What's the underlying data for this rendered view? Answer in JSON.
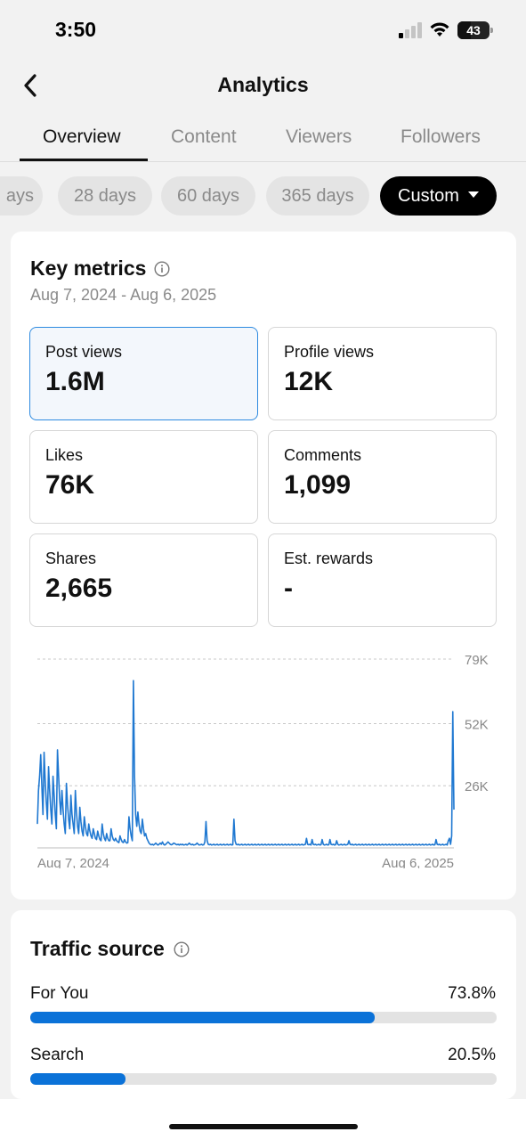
{
  "status_bar": {
    "time": "3:50",
    "battery": "43",
    "battery_level": 0.43
  },
  "nav": {
    "title": "Analytics"
  },
  "tabs": [
    {
      "label": "Overview",
      "active": true
    },
    {
      "label": "Content",
      "active": false
    },
    {
      "label": "Viewers",
      "active": false
    },
    {
      "label": "Followers",
      "active": false
    }
  ],
  "chips": [
    {
      "label": "ays",
      "selected": false
    },
    {
      "label": "28 days",
      "selected": false
    },
    {
      "label": "60 days",
      "selected": false
    },
    {
      "label": "365 days",
      "selected": false
    },
    {
      "label": "Custom",
      "selected": true
    }
  ],
  "key_metrics": {
    "title": "Key metrics",
    "date_range": "Aug 7, 2024 - Aug 6, 2025",
    "metrics": [
      {
        "label": "Post views",
        "value": "1.6M",
        "active": true
      },
      {
        "label": "Profile views",
        "value": "12K",
        "active": false
      },
      {
        "label": "Likes",
        "value": "76K",
        "active": false
      },
      {
        "label": "Comments",
        "value": "1,099",
        "active": false
      },
      {
        "label": "Shares",
        "value": "2,665",
        "active": false
      },
      {
        "label": "Est. rewards",
        "value": "-",
        "active": false
      }
    ]
  },
  "chart_data": {
    "type": "line",
    "x_start": "Aug 7, 2024",
    "x_end": "Aug 6, 2025",
    "y_ticks": [
      "79K",
      "52K",
      "26K"
    ],
    "y_tick_values": [
      79000,
      52000,
      26000
    ],
    "ylim": [
      0,
      79000
    ],
    "grid": true,
    "line_color": "#1f78d1",
    "series": [
      {
        "values": [
          10000,
          24000,
          30000,
          39000,
          26000,
          14000,
          40000,
          28000,
          19000,
          12000,
          34000,
          24000,
          16000,
          10000,
          30000,
          22000,
          14000,
          8000,
          41000,
          30000,
          20000,
          14000,
          24000,
          16000,
          10000,
          6000,
          27000,
          18000,
          12000,
          8000,
          22000,
          14000,
          10000,
          6000,
          24000,
          15000,
          9000,
          6000,
          17000,
          11000,
          7000,
          5000,
          13000,
          9000,
          6000,
          5000,
          10000,
          7000,
          5000,
          4000,
          8000,
          6000,
          4000,
          3500,
          7000,
          5000,
          3500,
          3000,
          10000,
          6000,
          4000,
          3000,
          6000,
          4000,
          3000,
          3000,
          8000,
          5000,
          3500,
          3000,
          4000,
          3000,
          2500,
          2200,
          5000,
          3500,
          2500,
          2200,
          3500,
          2500,
          2000,
          2200,
          13000,
          8000,
          5000,
          3000,
          70000,
          30000,
          14000,
          9000,
          15000,
          10000,
          7000,
          6000,
          12000,
          8000,
          5000,
          6000,
          4000,
          3000,
          2000,
          1500,
          1300,
          1500,
          1200,
          1500,
          2000,
          1500,
          1200,
          1500,
          2000,
          1500,
          2500,
          1500,
          1200,
          1500,
          2000,
          2500,
          2000,
          1500,
          1300,
          1500,
          2000,
          1800,
          1500,
          1300,
          1500,
          1200,
          1500,
          1300,
          1500,
          1200,
          1300,
          1500,
          1200,
          1500,
          2000,
          1500,
          1300,
          1500,
          1200,
          1300,
          1500,
          2000,
          1500,
          1200,
          1300,
          1500,
          1200,
          1300,
          2500,
          11000,
          3000,
          1500,
          1300,
          1500,
          1200,
          1300,
          1500,
          1200,
          1300,
          1500,
          1200,
          1300,
          1500,
          1200,
          1300,
          1500,
          1200,
          1300,
          1500,
          1200,
          1300,
          1500,
          1200,
          1300,
          12000,
          3000,
          1500,
          1300,
          1500,
          1200,
          1300,
          1500,
          1200,
          1300,
          1500,
          1200,
          1300,
          1500,
          1200,
          1300,
          1500,
          1200,
          1300,
          1500,
          1200,
          1300,
          1500,
          1200,
          1300,
          1500,
          1200,
          1300,
          1500,
          1200,
          1300,
          1500,
          1200,
          1300,
          1500,
          1200,
          1300,
          1500,
          1200,
          1300,
          1500,
          1200,
          1300,
          1500,
          1200,
          1300,
          1500,
          1200,
          1300,
          1500,
          1200,
          1300,
          1500,
          1200,
          1300,
          1500,
          1200,
          1300,
          1500,
          1200,
          1300,
          1500,
          1200,
          1300,
          1500,
          4000,
          1500,
          1300,
          1500,
          1200,
          3500,
          1500,
          1300,
          1500,
          1200,
          1300,
          1500,
          1200,
          1300,
          3500,
          1500,
          1200,
          1300,
          1500,
          1200,
          1300,
          3500,
          1500,
          1300,
          1500,
          1200,
          1300,
          3000,
          1500,
          1200,
          1300,
          1500,
          1200,
          1300,
          1500,
          1200,
          1300,
          1500,
          3000,
          1500,
          1300,
          1500,
          1200,
          1300,
          1500,
          1200,
          1300,
          1500,
          1200,
          1300,
          1500,
          1200,
          1300,
          1500,
          1200,
          1300,
          1500,
          1200,
          1300,
          1500,
          1200,
          1300,
          1500,
          1200,
          1300,
          1500,
          1200,
          1300,
          1500,
          1200,
          1300,
          1500,
          1200,
          1300,
          1500,
          1200,
          1300,
          1500,
          1200,
          1300,
          1500,
          1200,
          1300,
          1500,
          1200,
          1300,
          1500,
          1200,
          1300,
          1500,
          1200,
          1300,
          1500,
          1200,
          1300,
          1500,
          1200,
          1300,
          1500,
          1200,
          1300,
          1500,
          1200,
          1300,
          1500,
          1200,
          1300,
          1500,
          1200,
          1300,
          1500,
          1200,
          1300,
          1500,
          1200,
          1300,
          3500,
          1500,
          1300,
          1500,
          1200,
          1300,
          1500,
          1200,
          1300,
          1500,
          1200,
          3000,
          4000,
          1500,
          5000,
          57000,
          16000
        ]
      }
    ]
  },
  "traffic_source": {
    "title": "Traffic source",
    "rows": [
      {
        "label": "For You",
        "percent": "73.8%",
        "fraction": 0.738
      },
      {
        "label": "Search",
        "percent": "20.5%",
        "fraction": 0.205
      }
    ]
  }
}
